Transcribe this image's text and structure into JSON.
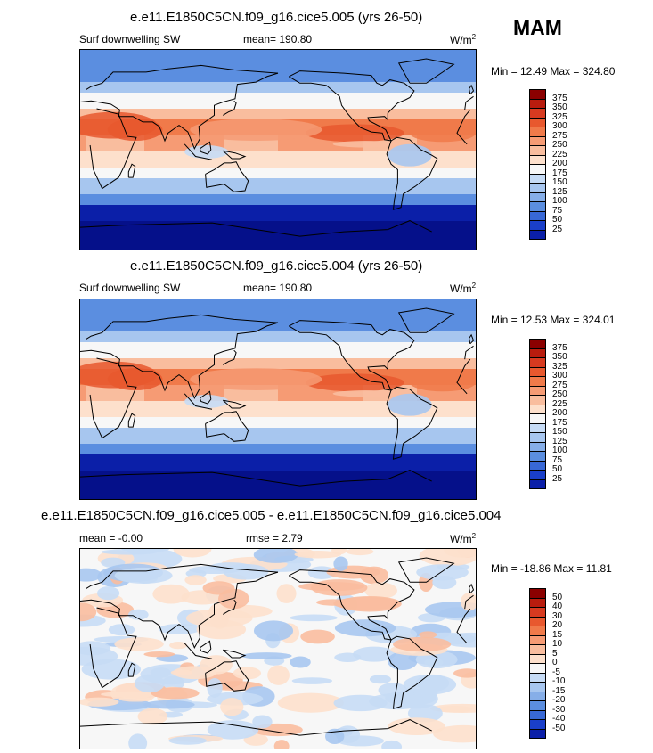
{
  "season": "MAM",
  "panels": [
    {
      "title": "e.e11.E1850C5CN.f09_g16.cice5.005 (yrs 26-50)",
      "left_label": "Surf downwelling SW",
      "center_label": "mean= 190.80",
      "units_base": "W/m",
      "units_exp": "2",
      "minmax": "Min =  12.49 Max = 324.80",
      "colorbar": {
        "labels": [
          "375",
          "350",
          "325",
          "300",
          "275",
          "250",
          "225",
          "200",
          "175",
          "150",
          "125",
          "100",
          "75",
          "50",
          "25"
        ],
        "colors": [
          "#8b0000",
          "#b81c0e",
          "#d73a20",
          "#e8582e",
          "#f07a4a",
          "#f69b74",
          "#f9bd9e",
          "#fde0cc",
          "#f7f7f7",
          "#c6dbf5",
          "#a7c6ef",
          "#86aee8",
          "#5b8ee0",
          "#3868d6",
          "#1a3fca",
          "#0b1fa8",
          "#05108a"
        ]
      },
      "style": "abs"
    },
    {
      "title": "e.e11.E1850C5CN.f09_g16.cice5.004 (yrs 26-50)",
      "left_label": "Surf downwelling SW",
      "center_label": "mean= 190.80",
      "units_base": "W/m",
      "units_exp": "2",
      "minmax": "Min =  12.53 Max = 324.01",
      "colorbar": {
        "labels": [
          "375",
          "350",
          "325",
          "300",
          "275",
          "250",
          "225",
          "200",
          "175",
          "150",
          "125",
          "100",
          "75",
          "50",
          "25"
        ],
        "colors": [
          "#8b0000",
          "#b81c0e",
          "#d73a20",
          "#e8582e",
          "#f07a4a",
          "#f69b74",
          "#f9bd9e",
          "#fde0cc",
          "#f7f7f7",
          "#c6dbf5",
          "#a7c6ef",
          "#86aee8",
          "#5b8ee0",
          "#3868d6",
          "#1a3fca",
          "#0b1fa8",
          "#05108a"
        ]
      },
      "style": "abs"
    },
    {
      "title": "e.e11.E1850C5CN.f09_g16.cice5.005 - e.e11.E1850C5CN.f09_g16.cice5.004",
      "left_label": "mean =  -0.00",
      "center_label": "rmse =   2.79",
      "units_base": "W/m",
      "units_exp": "2",
      "minmax": "Min = -18.86 Max =  11.81",
      "colorbar": {
        "labels": [
          "50",
          "40",
          "30",
          "20",
          "15",
          "10",
          "5",
          "0",
          "-5",
          "-10",
          "-15",
          "-20",
          "-30",
          "-40",
          "-50"
        ],
        "colors": [
          "#8b0000",
          "#b81c0e",
          "#d73a20",
          "#e8582e",
          "#f07a4a",
          "#f69b74",
          "#f9bd9e",
          "#fde0cc",
          "#f7f7f7",
          "#c6dbf5",
          "#a7c6ef",
          "#86aee8",
          "#5b8ee0",
          "#3868d6",
          "#1a3fca",
          "#0b1fa8",
          "#05108a"
        ]
      },
      "style": "diff"
    }
  ]
}
